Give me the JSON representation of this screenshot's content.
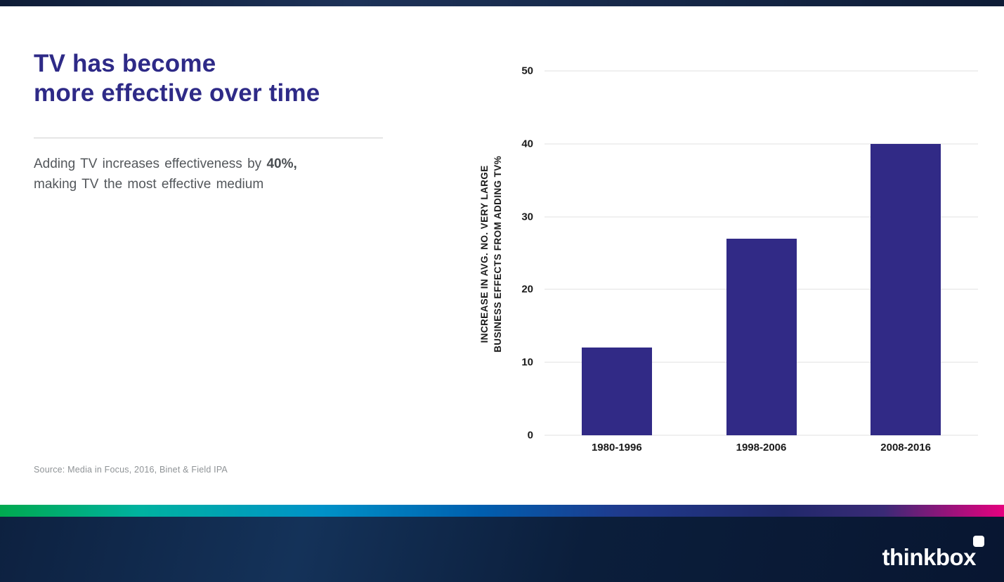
{
  "slide": {
    "title_line1": "TV has become",
    "title_line2": "more effective over time",
    "subtitle_part1": "Adding TV increases effectiveness by ",
    "subtitle_bold": "40%,",
    "subtitle_line2": "making TV the most effective medium",
    "source": "Source: Media in Focus, 2016, Binet & Field IPA"
  },
  "footer": {
    "logo_text": "thinkbox"
  },
  "colors": {
    "accent_indigo": "#2e2a87",
    "bar": "#312a86",
    "footer_navy": "#0b1e3b",
    "stripe_green": "#00a94f",
    "stripe_teal": "#00b2a0",
    "stripe_blue": "#005eae",
    "stripe_magenta": "#e6007e"
  },
  "chart_data": {
    "type": "bar",
    "categories": [
      "1980-1996",
      "1998-2006",
      "2008-2016"
    ],
    "values": [
      12,
      27,
      40
    ],
    "title": "",
    "xlabel": "",
    "ylabel": "INCREASE IN AVG. NO. VERY LARGE BUSINESS EFFECTS FROM ADDING TV%",
    "ylabel_line1": "INCREASE IN AVG. NO. VERY LARGE",
    "ylabel_line2": "BUSINESS EFFECTS FROM ADDING TV%",
    "ylim": [
      0,
      50
    ],
    "yticks": [
      0,
      10,
      20,
      30,
      40,
      50
    ],
    "grid": true,
    "legend": false,
    "bar_color": "#312a86"
  }
}
